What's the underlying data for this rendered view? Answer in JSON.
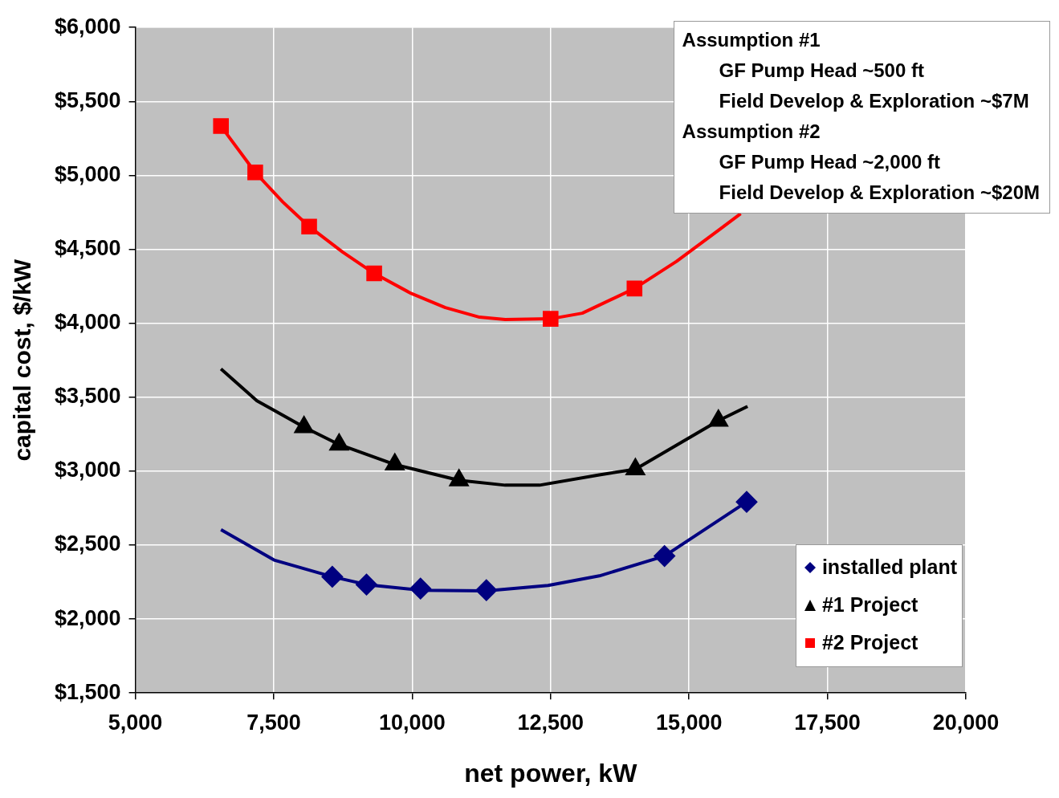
{
  "chart_data": {
    "type": "scatter",
    "xlabel": "net power, kW",
    "ylabel": "capital cost, $/kW",
    "xlim": [
      5000,
      20000
    ],
    "xticks": [
      {
        "value": 5000,
        "label": "5,000"
      },
      {
        "value": 7500,
        "label": "7,500"
      },
      {
        "value": 10000,
        "label": "10,000"
      },
      {
        "value": 12500,
        "label": "12,500"
      },
      {
        "value": 15000,
        "label": "15,000"
      },
      {
        "value": 17500,
        "label": "17,500"
      },
      {
        "value": 20000,
        "label": "20,000"
      }
    ],
    "ylim": [
      1500,
      6000
    ],
    "yticks": [
      {
        "value": 1500,
        "label": "$1,500"
      },
      {
        "value": 2000,
        "label": "$2,000"
      },
      {
        "value": 2500,
        "label": "$2,500"
      },
      {
        "value": 3000,
        "label": "$3,000"
      },
      {
        "value": 3500,
        "label": "$3,500"
      },
      {
        "value": 4000,
        "label": "$4,000"
      },
      {
        "value": 4500,
        "label": "$4,500"
      },
      {
        "value": 5000,
        "label": "$5,000"
      },
      {
        "value": 5500,
        "label": "$5,500"
      },
      {
        "value": 6000,
        "label": "$6,000"
      }
    ],
    "grid": true,
    "legend": "bottom right",
    "annotations": [
      "Assumption #1",
      "GF Pump Head ~500 ft",
      "Field Develop & Exploration ~$7M",
      "Assumption #2",
      "GF Pump Head ~2,000 ft",
      "Field Develop & Exploration ~$20M"
    ],
    "series": [
      {
        "name": "installed plant",
        "type": "scatter",
        "marker": "diamond",
        "color": "#000080",
        "x": [
          8557,
          9175,
          10150,
          11340,
          14557,
          16041
        ],
        "values": [
          2286,
          2233,
          2206,
          2195,
          2426,
          2792
        ]
      },
      {
        "name": "#1 Project",
        "type": "scatter",
        "marker": "triangle",
        "color": "#000000",
        "x": [
          8046,
          8680,
          9686,
          10845,
          14031,
          15531
        ],
        "values": [
          3298,
          3180,
          3045,
          2938,
          3013,
          3341
        ]
      },
      {
        "name": "#2 Project",
        "type": "scatter",
        "marker": "square",
        "color": "#ff0000",
        "x": [
          6546,
          7165,
          8139,
          9314,
          12500,
          14015
        ],
        "values": [
          5333,
          5020,
          4654,
          4337,
          4030,
          4235
        ]
      },
      {
        "type": "line",
        "marker": "none",
        "color": "#000080",
        "x": [
          6546,
          7505,
          8557,
          9175,
          10150,
          11340,
          12454,
          13381,
          14557,
          16041
        ],
        "values": [
          2604,
          2399,
          2286,
          2233,
          2195,
          2190,
          2227,
          2292,
          2426,
          2792
        ]
      },
      {
        "type": "line",
        "marker": "none",
        "color": "#000000",
        "x": [
          6546,
          7196,
          8046,
          8680,
          9686,
          10845,
          11680,
          12299,
          13381,
          14031,
          15531,
          16057
        ],
        "values": [
          3691,
          3476,
          3298,
          3180,
          3045,
          2938,
          2905,
          2905,
          2975,
          3013,
          3341,
          3438
        ]
      },
      {
        "type": "line",
        "marker": "none",
        "color": "#ff0000",
        "x": [
          6546,
          7165,
          7660,
          8139,
          8742,
          9314,
          9979,
          10598,
          11216,
          11680,
          12500,
          13072,
          14015,
          14773,
          15546,
          15933
        ],
        "values": [
          5333,
          5020,
          4821,
          4654,
          4482,
          4337,
          4202,
          4106,
          4041,
          4025,
          4030,
          4068,
          4235,
          4418,
          4633,
          4741
        ]
      }
    ]
  }
}
